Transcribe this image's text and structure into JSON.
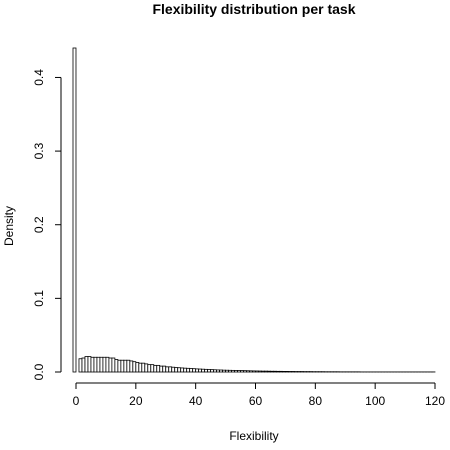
{
  "chart_data": {
    "type": "bar",
    "title": "Flexibility distribution per task",
    "xlabel": "Flexibility",
    "ylabel": "Density",
    "xlim": [
      -1,
      120
    ],
    "ylim": [
      0,
      0.44
    ],
    "x_ticks": [
      0,
      20,
      40,
      60,
      80,
      100,
      120
    ],
    "x_tick_labels": [
      "0",
      "20",
      "40",
      "60",
      "80",
      "100",
      "120"
    ],
    "y_ticks": [
      0.0,
      0.1,
      0.2,
      0.3,
      0.4
    ],
    "y_tick_labels": [
      "0.0",
      "0.1",
      "0.2",
      "0.3",
      "0.4"
    ],
    "bin_width": 1,
    "bin_start": -1,
    "grid": false,
    "legend": "none",
    "values": [
      0.44,
      0.0,
      0.018,
      0.019,
      0.021,
      0.021,
      0.02,
      0.02,
      0.02,
      0.02,
      0.02,
      0.02,
      0.019,
      0.019,
      0.017,
      0.016,
      0.016,
      0.016,
      0.016,
      0.015,
      0.014,
      0.013,
      0.012,
      0.012,
      0.011,
      0.01,
      0.01,
      0.009,
      0.009,
      0.008,
      0.008,
      0.007,
      0.007,
      0.0065,
      0.006,
      0.0058,
      0.0055,
      0.0052,
      0.005,
      0.0047,
      0.0045,
      0.0042,
      0.004,
      0.0038,
      0.0036,
      0.0034,
      0.0032,
      0.003,
      0.0028,
      0.0027,
      0.0025,
      0.0024,
      0.0023,
      0.0022,
      0.0021,
      0.002,
      0.0019,
      0.0018,
      0.0017,
      0.0016,
      0.0015,
      0.0014,
      0.0013,
      0.0012,
      0.0012,
      0.0011,
      0.001,
      0.001,
      0.0009,
      0.0009,
      0.0008,
      0.0008,
      0.0007,
      0.0007,
      0.0006,
      0.0006,
      0.0006,
      0.0005,
      0.0005,
      0.0005,
      0.0004,
      0.0004,
      0.0004,
      0.0004,
      0.0003,
      0.0003,
      0.0003,
      0.0003,
      0.0003,
      0.0002,
      0.0002,
      0.0002,
      0.0002,
      0.0002,
      0.0002,
      0.0002,
      0.0001,
      0.0001,
      0.0001,
      0.0001,
      0.0001,
      0.0001,
      0.0001,
      0.0001,
      0.0001,
      0.0001,
      0.0001,
      0.0001,
      0.0001,
      0.0001,
      0.0001,
      0.0001,
      0.0001,
      0.0001,
      0.0001,
      0.0001,
      0.0001,
      0.0001,
      0.0001,
      0.0001,
      0.0001
    ]
  }
}
